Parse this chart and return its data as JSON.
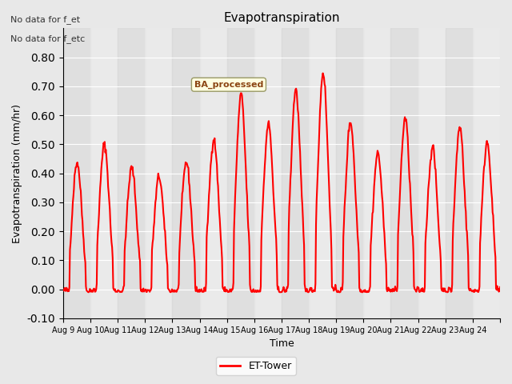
{
  "title": "Evapotranspiration",
  "ylabel": "Evapotranspiration (mm/hr)",
  "xlabel": "Time",
  "ylim": [
    -0.1,
    0.9
  ],
  "yticks": [
    -0.1,
    0.0,
    0.1,
    0.2,
    0.3,
    0.4,
    0.5,
    0.6,
    0.7,
    0.8
  ],
  "line_color": "red",
  "line_width": 1.5,
  "bg_color": "#e8e8e8",
  "plot_bg_color": "#f0f0f0",
  "text_annotations": [
    "No data for f_et",
    "No data for f_etc"
  ],
  "legend_label": "ET-Tower",
  "box_label": "BA_processed",
  "x_tick_labels": [
    "Aug 9",
    "Aug 10",
    "Aug 11",
    "Aug 12",
    "Aug 13",
    "Aug 14",
    "Aug 15",
    "Aug 16",
    "Aug 17",
    "Aug 18",
    "Aug 19",
    "Aug 20",
    "Aug 21",
    "Aug 22",
    "Aug 23",
    "Aug 24"
  ],
  "n_days": 16,
  "start_day": 9,
  "stripe_color": "#dcdcdc",
  "stripe_alpha": 1.0
}
